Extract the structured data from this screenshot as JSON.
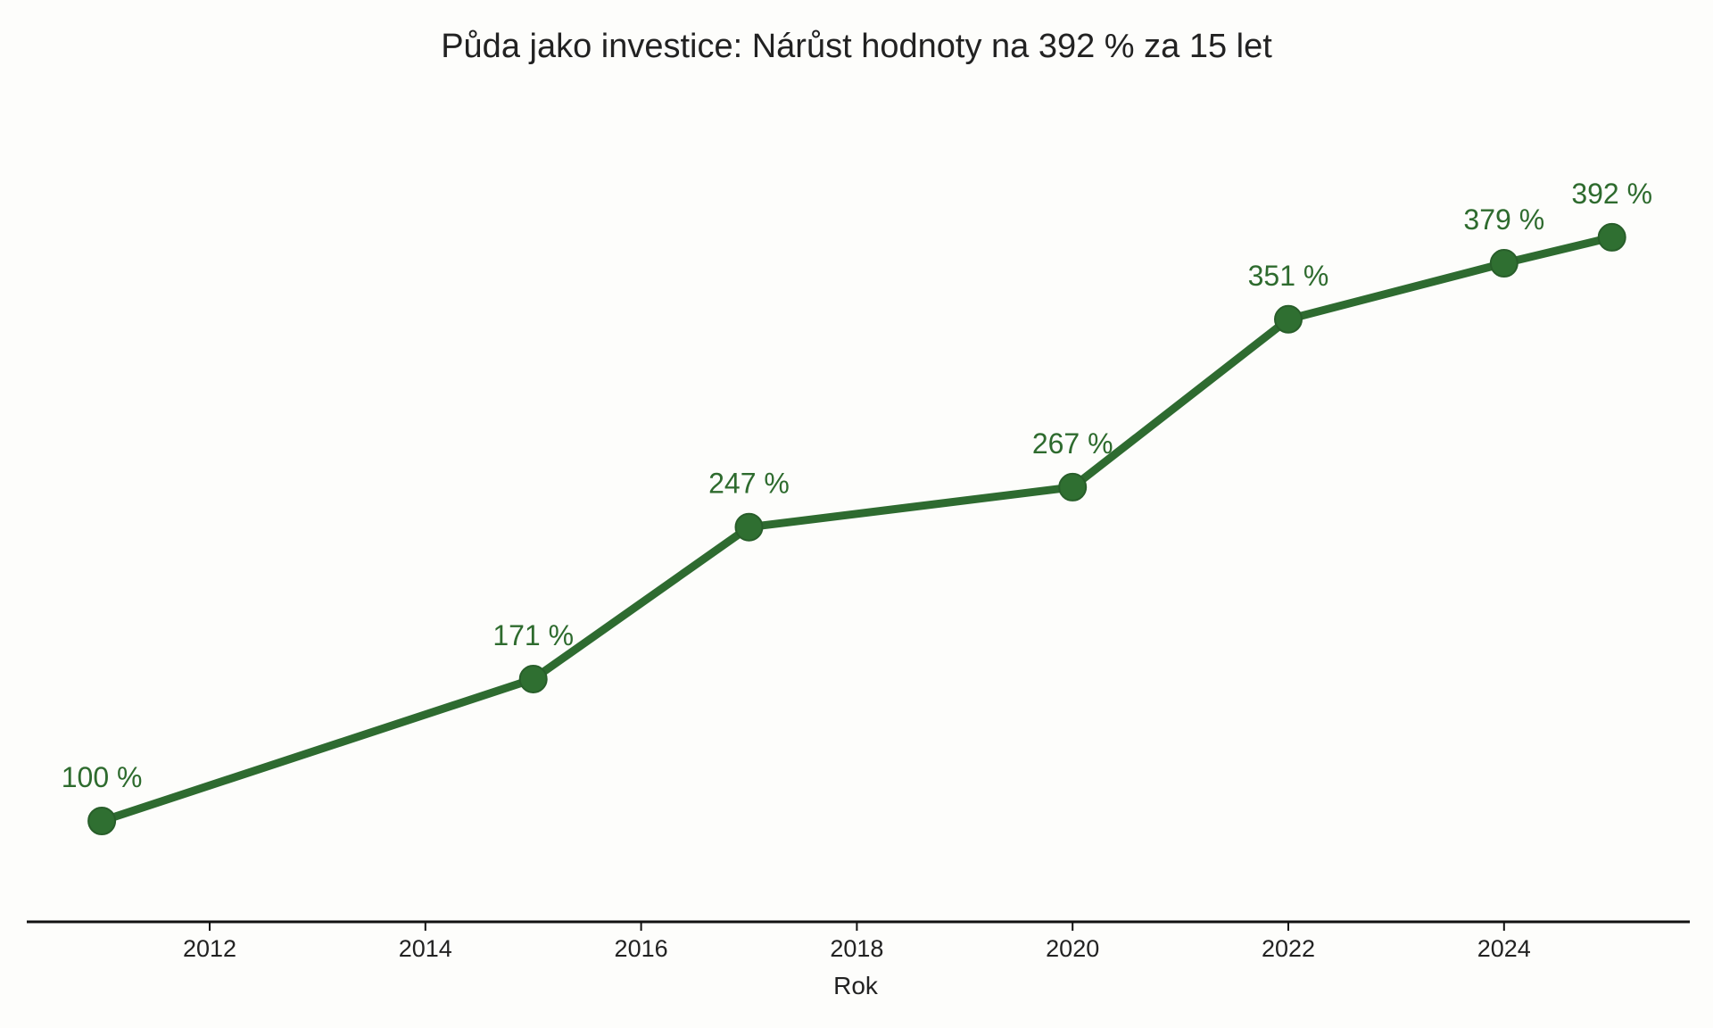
{
  "chart_data": {
    "type": "line",
    "title": "Půda jako investice: Nárůst hodnoty na 392 % za 15 let",
    "xlabel": "Rok",
    "ylabel": "",
    "x": [
      2011,
      2015,
      2017,
      2020,
      2022,
      2024,
      2025
    ],
    "series": [
      {
        "values": [
          100,
          171,
          247,
          267,
          351,
          379,
          392
        ]
      }
    ],
    "data_labels": [
      "100 %",
      "171 %",
      "247 %",
      "267 %",
      "351 %",
      "379 %",
      "392 %"
    ],
    "x_ticks": [
      "2012",
      "2014",
      "2016",
      "2018",
      "2020",
      "2022",
      "2024"
    ],
    "xlim": [
      2009.6,
      2026.4
    ],
    "ylim": [
      44,
      411
    ],
    "grid": false,
    "legend": "none",
    "colors": {
      "line": "#2e6b30",
      "marker": "#2f6f31",
      "label": "#2e6b2e",
      "axis": "#111111"
    }
  }
}
